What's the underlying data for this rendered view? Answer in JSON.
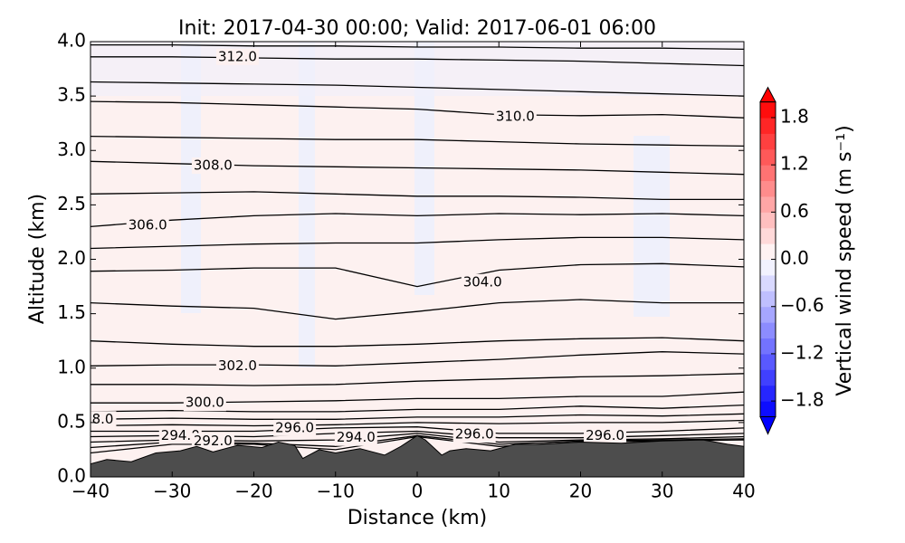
{
  "chart_data": {
    "type": "contour",
    "title": "Init: 2017-04-30 00:00; Valid: 2017-06-01 06:00",
    "x_label": "Distance (km)",
    "y_label": "Altitude (km)",
    "xlim": [
      -40,
      40
    ],
    "xticks": [
      {
        "value": -40,
        "label": "−40"
      },
      {
        "value": -30,
        "label": "−30"
      },
      {
        "value": -20,
        "label": "−20"
      },
      {
        "value": -10,
        "label": "−10"
      },
      0,
      10,
      20,
      30,
      40
    ],
    "ylim": [
      0,
      4
    ],
    "yticks": [
      {
        "value": 0,
        "label": "0.0"
      },
      0.5,
      {
        "value": 1,
        "label": "1.0"
      },
      1.5,
      {
        "value": 2,
        "label": "2.0"
      },
      2.5,
      {
        "value": 3,
        "label": "3.0"
      },
      3.5,
      {
        "value": 4,
        "label": "4.0"
      }
    ],
    "colorbar": {
      "label": "Vertical wind speed (m s⁻¹)",
      "colormap": "bwr",
      "clim": [
        -2,
        2
      ],
      "level_step": 0.2,
      "ticks": [
        {
          "value": 1.8,
          "label": "1.8"
        },
        {
          "value": 1.2,
          "label": "1.2"
        },
        {
          "value": 0.6,
          "label": "0.6"
        },
        {
          "value": 0,
          "label": "0.0"
        },
        {
          "value": -0.6,
          "label": "−0.6"
        },
        {
          "value": -1.2,
          "label": "−1.2"
        },
        {
          "value": -1.8,
          "label": "−1.8"
        }
      ]
    },
    "contour_x": [
      -40,
      -30,
      -20,
      -10,
      0,
      10,
      20,
      30,
      40
    ],
    "contours": [
      {
        "level": 313,
        "values": [
          3.97,
          3.97,
          3.96,
          3.96,
          3.95,
          3.95,
          3.94,
          3.94,
          3.93
        ]
      },
      {
        "level": 312,
        "values": [
          3.86,
          3.86,
          3.85,
          3.84,
          3.84,
          3.83,
          3.82,
          3.8,
          3.78
        ]
      },
      {
        "level": 311,
        "values": [
          3.63,
          3.62,
          3.61,
          3.6,
          3.58,
          3.56,
          3.54,
          3.52,
          3.5
        ]
      },
      {
        "level": 310,
        "values": [
          3.45,
          3.44,
          3.42,
          3.4,
          3.38,
          3.33,
          3.32,
          3.33,
          3.3
        ]
      },
      {
        "level": 309,
        "values": [
          3.13,
          3.12,
          3.11,
          3.1,
          3.1,
          3.08,
          3.06,
          3.05,
          3.04
        ]
      },
      {
        "level": 308,
        "values": [
          2.9,
          2.88,
          2.86,
          2.85,
          2.84,
          2.83,
          2.82,
          2.8,
          2.78
        ]
      },
      {
        "level": 307,
        "values": [
          2.6,
          2.61,
          2.62,
          2.6,
          2.58,
          2.58,
          2.57,
          2.55,
          2.55
        ]
      },
      {
        "level": 306,
        "values": [
          2.3,
          2.36,
          2.4,
          2.42,
          2.4,
          2.42,
          2.41,
          2.42,
          2.4
        ]
      },
      {
        "level": 305,
        "values": [
          2.1,
          2.12,
          2.14,
          2.15,
          2.15,
          2.18,
          2.2,
          2.2,
          2.18
        ]
      },
      {
        "level": 304,
        "values": [
          1.89,
          1.9,
          1.92,
          1.92,
          1.75,
          1.9,
          1.95,
          1.96,
          1.93
        ]
      },
      {
        "level": 303,
        "values": [
          1.6,
          1.57,
          1.55,
          1.45,
          1.52,
          1.6,
          1.63,
          1.6,
          1.6
        ]
      },
      {
        "level": 302.5,
        "values": [
          1.25,
          1.22,
          1.2,
          1.2,
          1.22,
          1.25,
          1.27,
          1.28,
          1.25
        ]
      },
      {
        "level": 302,
        "values": [
          1.02,
          1.03,
          1.03,
          1.02,
          1.05,
          1.08,
          1.12,
          1.15,
          1.13
        ]
      },
      {
        "level": 301,
        "values": [
          0.85,
          0.85,
          0.84,
          0.85,
          0.88,
          0.9,
          0.92,
          0.93,
          0.95
        ]
      },
      {
        "level": 300,
        "values": [
          0.68,
          0.68,
          0.69,
          0.7,
          0.72,
          0.72,
          0.74,
          0.74,
          0.78
        ]
      },
      {
        "level": 299,
        "values": [
          0.6,
          0.61,
          0.6,
          0.6,
          0.62,
          0.62,
          0.65,
          0.63,
          0.66
        ]
      },
      {
        "level": 298,
        "values": [
          0.53,
          0.54,
          0.53,
          0.53,
          0.55,
          0.55,
          0.57,
          0.56,
          0.58
        ]
      },
      {
        "level": 297,
        "values": [
          0.47,
          0.48,
          0.47,
          0.48,
          0.5,
          0.49,
          0.5,
          0.5,
          0.52
        ]
      },
      {
        "level": 296,
        "values": [
          0.42,
          0.42,
          0.42,
          0.45,
          0.46,
          0.4,
          0.4,
          0.42,
          0.45
        ]
      },
      {
        "level": 295,
        "values": [
          0.37,
          0.38,
          0.37,
          0.4,
          0.42,
          0.36,
          0.36,
          0.38,
          0.4
        ]
      },
      {
        "level": 294,
        "values": [
          0.32,
          0.34,
          0.33,
          0.34,
          0.4,
          0.32,
          0.34,
          0.35,
          0.37
        ]
      },
      {
        "level": 293,
        "values": [
          0.27,
          0.32,
          0.31,
          0.28,
          0.38,
          0.3,
          0.33,
          0.34,
          0.35
        ]
      },
      {
        "level": 292,
        "values": [
          0.22,
          0.3,
          0.3,
          0.25,
          0.37,
          0.28,
          0.32,
          0.33,
          0.34
        ]
      }
    ],
    "contour_labels": [
      {
        "text": "312.0",
        "x": -22,
        "y": 3.86
      },
      {
        "text": "310.0",
        "x": 12,
        "y": 3.31
      },
      {
        "text": "308.0",
        "x": -25,
        "y": 2.86
      },
      {
        "text": "306.0",
        "x": -33,
        "y": 2.31
      },
      {
        "text": "304.0",
        "x": 8,
        "y": 1.79
      },
      {
        "text": "302.0",
        "x": -22,
        "y": 1.02
      },
      {
        "text": "300.0",
        "x": -26,
        "y": 0.68
      },
      {
        "text": "8.0",
        "x": -38.5,
        "y": 0.53
      },
      {
        "text": "294.0",
        "x": -29,
        "y": 0.38
      },
      {
        "text": "292.0",
        "x": -25,
        "y": 0.33
      },
      {
        "text": "296.0",
        "x": -15,
        "y": 0.45
      },
      {
        "text": "294.0",
        "x": -7.5,
        "y": 0.36
      },
      {
        "text": "296.0",
        "x": 7,
        "y": 0.39
      },
      {
        "text": "296.0",
        "x": 23,
        "y": 0.38
      }
    ],
    "terrain": {
      "color": "#4d4d4d",
      "x": [
        -40,
        -38,
        -35,
        -32,
        -29,
        -27,
        -25,
        -22,
        -19,
        -17,
        -15,
        -14,
        -12,
        -10,
        -7,
        -4,
        -2,
        0,
        1,
        3,
        4,
        6,
        9,
        12,
        15,
        20,
        25,
        30,
        35,
        38,
        40
      ],
      "y": [
        0.12,
        0.16,
        0.14,
        0.22,
        0.24,
        0.28,
        0.23,
        0.29,
        0.27,
        0.32,
        0.29,
        0.17,
        0.25,
        0.22,
        0.26,
        0.2,
        0.28,
        0.38,
        0.34,
        0.2,
        0.24,
        0.26,
        0.24,
        0.3,
        0.3,
        0.32,
        0.31,
        0.33,
        0.34,
        0.3,
        0.28
      ]
    }
  }
}
